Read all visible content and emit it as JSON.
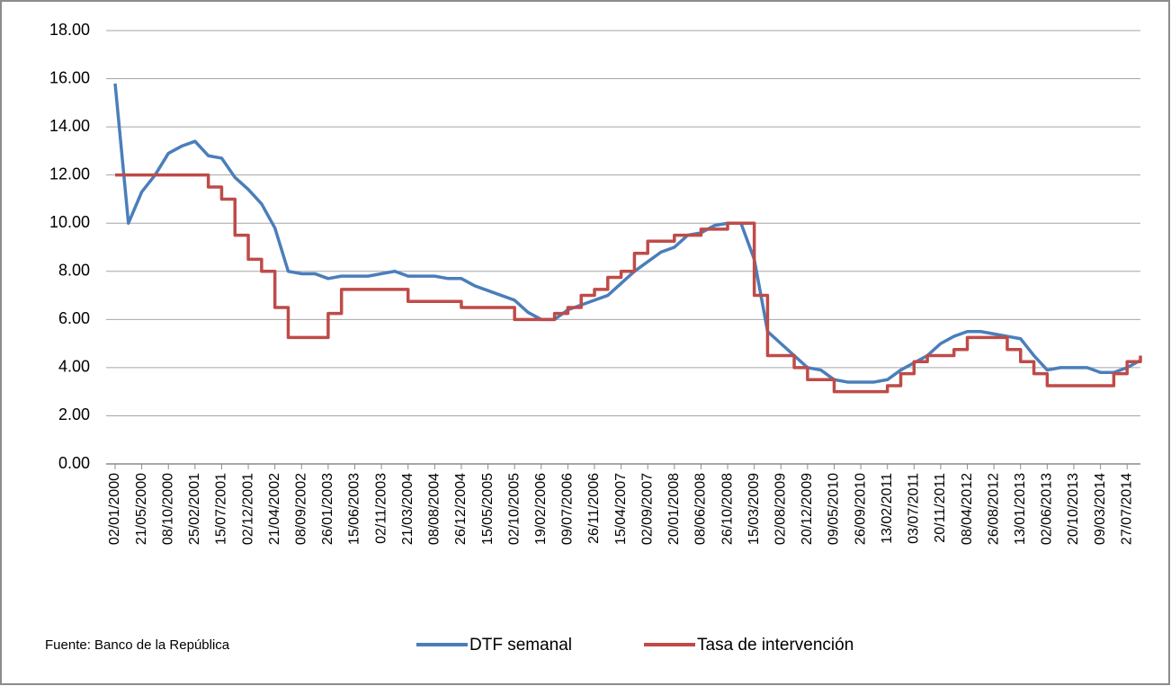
{
  "chart_data": {
    "type": "line",
    "categories": [
      "02/01/2000",
      null,
      "21/05/2000",
      null,
      "08/10/2000",
      null,
      "25/02/2001",
      null,
      "15/07/2001",
      null,
      "02/12/2001",
      null,
      "21/04/2002",
      null,
      "08/09/2002",
      null,
      "26/01/2003",
      null,
      "15/06/2003",
      null,
      "02/11/2003",
      null,
      "21/03/2004",
      null,
      "08/08/2004",
      null,
      "26/12/2004",
      null,
      "15/05/2005",
      null,
      "02/10/2005",
      null,
      "19/02/2006",
      null,
      "09/07/2006",
      null,
      "26/11/2006",
      null,
      "15/04/2007",
      null,
      "02/09/2007",
      null,
      "20/01/2008",
      null,
      "08/06/2008",
      null,
      "26/10/2008",
      null,
      "15/03/2009",
      null,
      "02/08/2009",
      null,
      "20/12/2009",
      null,
      "09/05/2010",
      null,
      "26/09/2010",
      null,
      "13/02/2011",
      null,
      "03/07/2011",
      null,
      "20/11/2011",
      null,
      "08/04/2012",
      null,
      "26/08/2012",
      null,
      "13/01/2013",
      null,
      "02/06/2013",
      null,
      "20/10/2013",
      null,
      "09/03/2014",
      null,
      "27/07/2014",
      null
    ],
    "series": [
      {
        "name": "DTF semanal",
        "color": "#4a7ebb",
        "step": false,
        "values": [
          15.8,
          10.0,
          11.3,
          12.0,
          12.9,
          13.2,
          13.4,
          12.8,
          12.7,
          11.9,
          11.4,
          10.8,
          9.8,
          8.0,
          7.9,
          7.9,
          7.7,
          7.8,
          7.8,
          7.8,
          7.9,
          8.0,
          7.8,
          7.8,
          7.8,
          7.7,
          7.7,
          7.4,
          7.2,
          7.0,
          6.8,
          6.3,
          6.0,
          6.0,
          6.4,
          6.6,
          6.8,
          7.0,
          7.5,
          8.0,
          8.4,
          8.8,
          9.0,
          9.5,
          9.6,
          9.9,
          10.0,
          10.0,
          8.5,
          5.5,
          5.0,
          4.5,
          4.0,
          3.9,
          3.5,
          3.4,
          3.4,
          3.4,
          3.5,
          3.9,
          4.2,
          4.5,
          5.0,
          5.3,
          5.5,
          5.5,
          5.4,
          5.3,
          5.2,
          4.5,
          3.9,
          4.0,
          4.0,
          4.0,
          3.8,
          3.8,
          4.0,
          4.3
        ]
      },
      {
        "name": "Tasa de intervención",
        "color": "#be4b48",
        "step": true,
        "values": [
          12.0,
          12.0,
          12.0,
          12.0,
          12.0,
          12.0,
          12.0,
          11.5,
          11.0,
          9.5,
          8.5,
          8.0,
          6.5,
          5.25,
          5.25,
          5.25,
          6.25,
          7.25,
          7.25,
          7.25,
          7.25,
          7.25,
          6.75,
          6.75,
          6.75,
          6.75,
          6.5,
          6.5,
          6.5,
          6.5,
          6.0,
          6.0,
          6.0,
          6.25,
          6.5,
          7.0,
          7.25,
          7.75,
          8.0,
          8.75,
          9.25,
          9.25,
          9.5,
          9.5,
          9.75,
          9.75,
          10.0,
          10.0,
          7.0,
          4.5,
          4.5,
          4.0,
          3.5,
          3.5,
          3.0,
          3.0,
          3.0,
          3.0,
          3.25,
          3.75,
          4.25,
          4.5,
          4.5,
          4.75,
          5.25,
          5.25,
          5.25,
          4.75,
          4.25,
          3.75,
          3.25,
          3.25,
          3.25,
          3.25,
          3.25,
          3.75,
          4.25,
          4.5
        ]
      }
    ],
    "ylim": [
      0,
      18
    ],
    "yticks": [
      {
        "value": 0,
        "label": "0.00"
      },
      {
        "value": 2,
        "label": "2.00"
      },
      {
        "value": 4,
        "label": "4.00"
      },
      {
        "value": 6,
        "label": "6.00"
      },
      {
        "value": 8,
        "label": "8.00"
      },
      {
        "value": 10,
        "label": "10.00"
      },
      {
        "value": 12,
        "label": "12.00"
      },
      {
        "value": 14,
        "label": "14.00"
      },
      {
        "value": 16,
        "label": "16.00"
      },
      {
        "value": 18,
        "label": "18.00"
      }
    ],
    "grid": true,
    "source": "Fuente: Banco de la República"
  }
}
